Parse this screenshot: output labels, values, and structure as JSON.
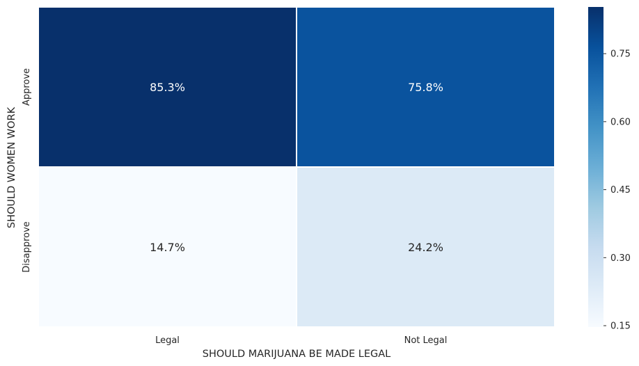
{
  "chart_data": {
    "type": "heatmap",
    "title": "",
    "xlabel": "SHOULD MARIJUANA BE MADE LEGAL",
    "ylabel": "SHOULD WOMEN WORK",
    "x_categories": [
      "Legal",
      "Not Legal"
    ],
    "y_categories": [
      "Approve",
      "Disapprove"
    ],
    "values": [
      [
        0.853,
        0.758
      ],
      [
        0.147,
        0.242
      ]
    ],
    "cell_labels": [
      [
        "85.3%",
        "75.8%"
      ],
      [
        "14.7%",
        "24.2%"
      ]
    ],
    "colormap": "Blues",
    "colorbar": {
      "vmin": 0.147,
      "vmax": 0.853,
      "ticks": [
        0.15,
        0.3,
        0.45,
        0.6,
        0.75
      ],
      "tick_labels": [
        "0.15",
        "0.30",
        "0.45",
        "0.60",
        "0.75"
      ]
    },
    "grid": false,
    "legend": "colorbar-right"
  }
}
